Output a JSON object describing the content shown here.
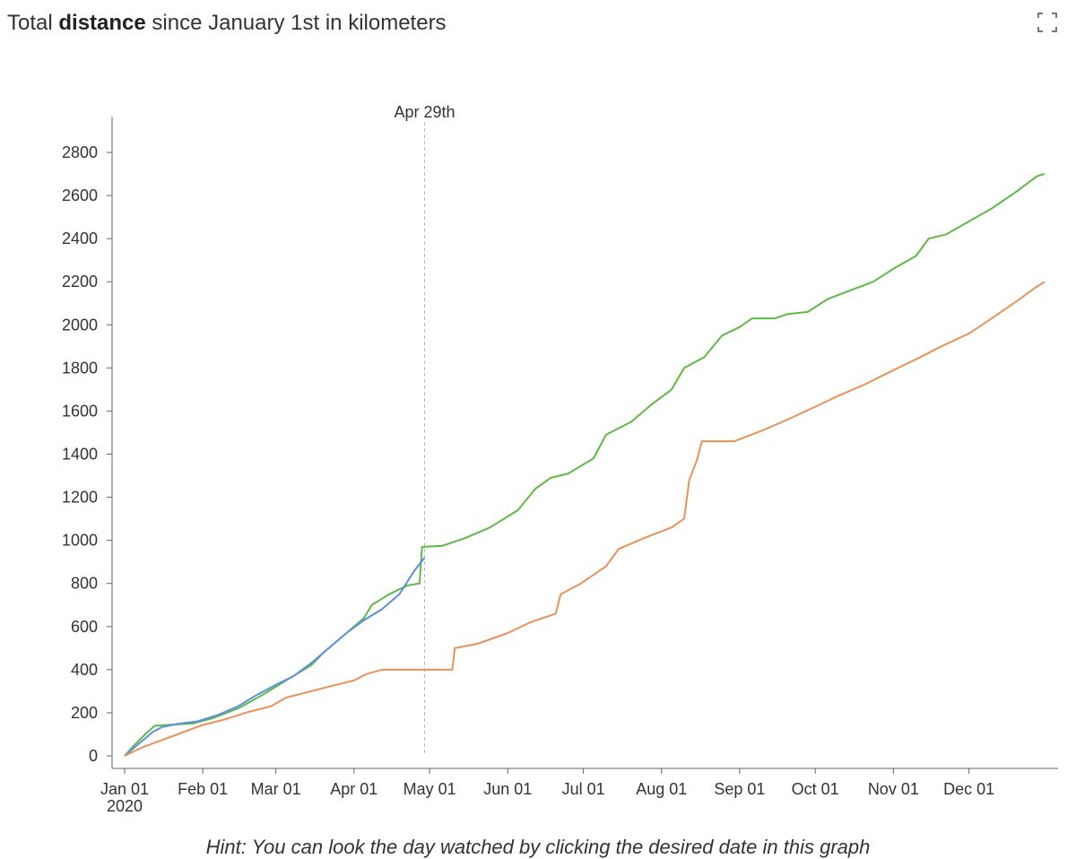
{
  "title": {
    "prefix": "Total ",
    "bold": "distance",
    "suffix": " since January 1st in kilometers"
  },
  "hint": "Hint: You can look the day watched by clicking the desired date in this graph",
  "icons": {
    "fullscreen": "fullscreen-icon"
  },
  "chart_data": {
    "type": "line",
    "title": "Total distance since January 1st in kilometers",
    "xlabel": "",
    "ylabel": "",
    "xlim": [
      "2020-01-01",
      "2020-12-31"
    ],
    "ylim": [
      0,
      2800
    ],
    "y_ticks": [
      0,
      200,
      400,
      600,
      800,
      1000,
      1200,
      1400,
      1600,
      1800,
      2000,
      2200,
      2400,
      2600,
      2800
    ],
    "x_ticks": [
      {
        "date": "2020-01-01",
        "label": "Jan 01",
        "sublabel": "2020"
      },
      {
        "date": "2020-02-01",
        "label": "Feb 01"
      },
      {
        "date": "2020-03-01",
        "label": "Mar 01"
      },
      {
        "date": "2020-04-01",
        "label": "Apr 01"
      },
      {
        "date": "2020-05-01",
        "label": "May 01"
      },
      {
        "date": "2020-06-01",
        "label": "Jun 01"
      },
      {
        "date": "2020-07-01",
        "label": "Jul 01"
      },
      {
        "date": "2020-08-01",
        "label": "Aug 01"
      },
      {
        "date": "2020-09-01",
        "label": "Sep 01"
      },
      {
        "date": "2020-10-01",
        "label": "Oct 01"
      },
      {
        "date": "2020-11-01",
        "label": "Nov 01"
      },
      {
        "date": "2020-12-01",
        "label": "Dec 01"
      }
    ],
    "marker": {
      "date": "2020-04-29",
      "label": "Apr 29th"
    },
    "grid": false,
    "legend": "none",
    "series": [
      {
        "color": "#5fb946",
        "points": [
          [
            "2020-01-01",
            0
          ],
          [
            "2020-01-04",
            40
          ],
          [
            "2020-01-07",
            75
          ],
          [
            "2020-01-10",
            110
          ],
          [
            "2020-01-13",
            140
          ],
          [
            "2020-01-20",
            145
          ],
          [
            "2020-01-28",
            150
          ],
          [
            "2020-02-05",
            175
          ],
          [
            "2020-02-15",
            220
          ],
          [
            "2020-02-25",
            285
          ],
          [
            "2020-03-05",
            350
          ],
          [
            "2020-03-15",
            420
          ],
          [
            "2020-03-20",
            480
          ],
          [
            "2020-03-25",
            530
          ],
          [
            "2020-04-01",
            600
          ],
          [
            "2020-04-05",
            640
          ],
          [
            "2020-04-08",
            700
          ],
          [
            "2020-04-15",
            750
          ],
          [
            "2020-04-22",
            790
          ],
          [
            "2020-04-27",
            800
          ],
          [
            "2020-04-28",
            970
          ],
          [
            "2020-05-06",
            975
          ],
          [
            "2020-05-15",
            1010
          ],
          [
            "2020-05-25",
            1060
          ],
          [
            "2020-06-05",
            1140
          ],
          [
            "2020-06-12",
            1240
          ],
          [
            "2020-06-18",
            1290
          ],
          [
            "2020-06-25",
            1310
          ],
          [
            "2020-07-05",
            1380
          ],
          [
            "2020-07-10",
            1490
          ],
          [
            "2020-07-20",
            1550
          ],
          [
            "2020-07-28",
            1630
          ],
          [
            "2020-08-05",
            1700
          ],
          [
            "2020-08-10",
            1800
          ],
          [
            "2020-08-18",
            1850
          ],
          [
            "2020-08-25",
            1950
          ],
          [
            "2020-09-01",
            1990
          ],
          [
            "2020-09-06",
            2030
          ],
          [
            "2020-09-15",
            2030
          ],
          [
            "2020-09-20",
            2050
          ],
          [
            "2020-09-28",
            2060
          ],
          [
            "2020-10-06",
            2120
          ],
          [
            "2020-10-15",
            2160
          ],
          [
            "2020-10-24",
            2200
          ],
          [
            "2020-11-01",
            2260
          ],
          [
            "2020-11-10",
            2320
          ],
          [
            "2020-11-15",
            2400
          ],
          [
            "2020-11-22",
            2420
          ],
          [
            "2020-12-01",
            2480
          ],
          [
            "2020-12-10",
            2540
          ],
          [
            "2020-12-20",
            2620
          ],
          [
            "2020-12-28",
            2690
          ],
          [
            "2020-12-31",
            2700
          ]
        ]
      },
      {
        "color": "#5b8fe0",
        "points": [
          [
            "2020-01-01",
            0
          ],
          [
            "2020-01-04",
            30
          ],
          [
            "2020-01-08",
            70
          ],
          [
            "2020-01-12",
            110
          ],
          [
            "2020-01-16",
            135
          ],
          [
            "2020-01-23",
            150
          ],
          [
            "2020-01-30",
            160
          ],
          [
            "2020-02-07",
            190
          ],
          [
            "2020-02-15",
            230
          ],
          [
            "2020-02-22",
            280
          ],
          [
            "2020-03-01",
            330
          ],
          [
            "2020-03-08",
            370
          ],
          [
            "2020-03-15",
            430
          ],
          [
            "2020-03-22",
            500
          ],
          [
            "2020-03-29",
            570
          ],
          [
            "2020-04-05",
            630
          ],
          [
            "2020-04-12",
            680
          ],
          [
            "2020-04-19",
            750
          ],
          [
            "2020-04-25",
            860
          ],
          [
            "2020-04-29",
            920
          ]
        ]
      },
      {
        "color": "#e8925a",
        "points": [
          [
            "2020-01-01",
            0
          ],
          [
            "2020-01-08",
            40
          ],
          [
            "2020-01-15",
            70
          ],
          [
            "2020-01-22",
            100
          ],
          [
            "2020-01-31",
            140
          ],
          [
            "2020-02-10",
            170
          ],
          [
            "2020-02-18",
            200
          ],
          [
            "2020-02-28",
            230
          ],
          [
            "2020-03-05",
            270
          ],
          [
            "2020-03-15",
            300
          ],
          [
            "2020-03-25",
            330
          ],
          [
            "2020-04-01",
            350
          ],
          [
            "2020-04-06",
            380
          ],
          [
            "2020-04-12",
            400
          ],
          [
            "2020-05-10",
            400
          ],
          [
            "2020-05-11",
            500
          ],
          [
            "2020-05-20",
            520
          ],
          [
            "2020-06-01",
            570
          ],
          [
            "2020-06-10",
            620
          ],
          [
            "2020-06-20",
            660
          ],
          [
            "2020-06-22",
            750
          ],
          [
            "2020-06-30",
            800
          ],
          [
            "2020-07-10",
            880
          ],
          [
            "2020-07-15",
            960
          ],
          [
            "2020-07-25",
            1010
          ],
          [
            "2020-08-05",
            1060
          ],
          [
            "2020-08-10",
            1100
          ],
          [
            "2020-08-12",
            1280
          ],
          [
            "2020-08-15",
            1370
          ],
          [
            "2020-08-17",
            1460
          ],
          [
            "2020-08-30",
            1460
          ],
          [
            "2020-09-10",
            1510
          ],
          [
            "2020-09-20",
            1560
          ],
          [
            "2020-10-01",
            1620
          ],
          [
            "2020-10-10",
            1670
          ],
          [
            "2020-10-20",
            1720
          ],
          [
            "2020-11-01",
            1790
          ],
          [
            "2020-11-10",
            1840
          ],
          [
            "2020-11-20",
            1900
          ],
          [
            "2020-12-01",
            1960
          ],
          [
            "2020-12-10",
            2030
          ],
          [
            "2020-12-20",
            2110
          ],
          [
            "2020-12-27",
            2170
          ],
          [
            "2020-12-31",
            2200
          ]
        ]
      }
    ]
  }
}
